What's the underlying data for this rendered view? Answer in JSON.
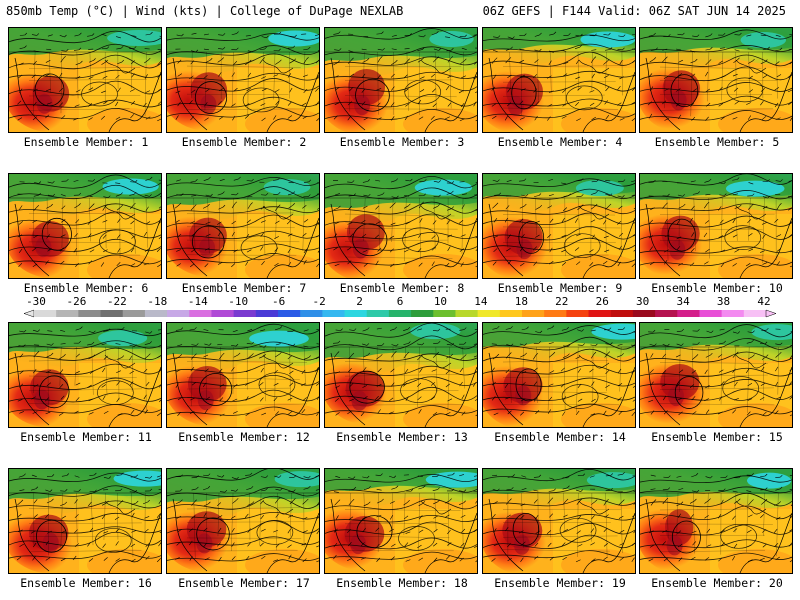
{
  "header": {
    "title_left": "850mb Temp (°C) | Wind (kts) | College of DuPage NEXLAB",
    "title_right": "06Z GEFS | F144 Valid: 06Z SAT JUN 14 2025"
  },
  "panels": [
    {
      "label": "Ensemble Member: 1"
    },
    {
      "label": "Ensemble Member: 2"
    },
    {
      "label": "Ensemble Member: 3"
    },
    {
      "label": "Ensemble Member: 4"
    },
    {
      "label": "Ensemble Member: 5"
    },
    {
      "label": "Ensemble Member: 6"
    },
    {
      "label": "Ensemble Member: 7"
    },
    {
      "label": "Ensemble Member: 8"
    },
    {
      "label": "Ensemble Member: 9"
    },
    {
      "label": "Ensemble Member: 10"
    },
    {
      "label": "Ensemble Member: 11"
    },
    {
      "label": "Ensemble Member: 12"
    },
    {
      "label": "Ensemble Member: 13"
    },
    {
      "label": "Ensemble Member: 14"
    },
    {
      "label": "Ensemble Member: 15"
    },
    {
      "label": "Ensemble Member: 16"
    },
    {
      "label": "Ensemble Member: 17"
    },
    {
      "label": "Ensemble Member: 18"
    },
    {
      "label": "Ensemble Member: 19"
    },
    {
      "label": "Ensemble Member: 20"
    }
  ],
  "colorbar": {
    "labels": [
      "-30",
      "-26",
      "-22",
      "-18",
      "-14",
      "-10",
      "-6",
      "-2",
      "2",
      "6",
      "10",
      "14",
      "18",
      "22",
      "26",
      "30",
      "34",
      "38",
      "42"
    ],
    "colors": [
      "#d9d9d9",
      "#b5b5b5",
      "#8c8c8c",
      "#707070",
      "#9a9a9a",
      "#b9b9c9",
      "#c7a8e6",
      "#d96fe0",
      "#b04ad6",
      "#7a3ad0",
      "#4a3ad6",
      "#2a5ae6",
      "#2f8fe8",
      "#35b8f0",
      "#2ed6e0",
      "#2ec9a8",
      "#27b36b",
      "#2e9d3b",
      "#6cbf2e",
      "#b8d82a",
      "#f0e82a",
      "#ffc81e",
      "#ffa219",
      "#ff7a14",
      "#f5420f",
      "#e01414",
      "#c00d0d",
      "#9a0a1e",
      "#b5124f",
      "#d41e8a",
      "#e84fd6",
      "#f38af0",
      "#f7c0f5"
    ]
  }
}
